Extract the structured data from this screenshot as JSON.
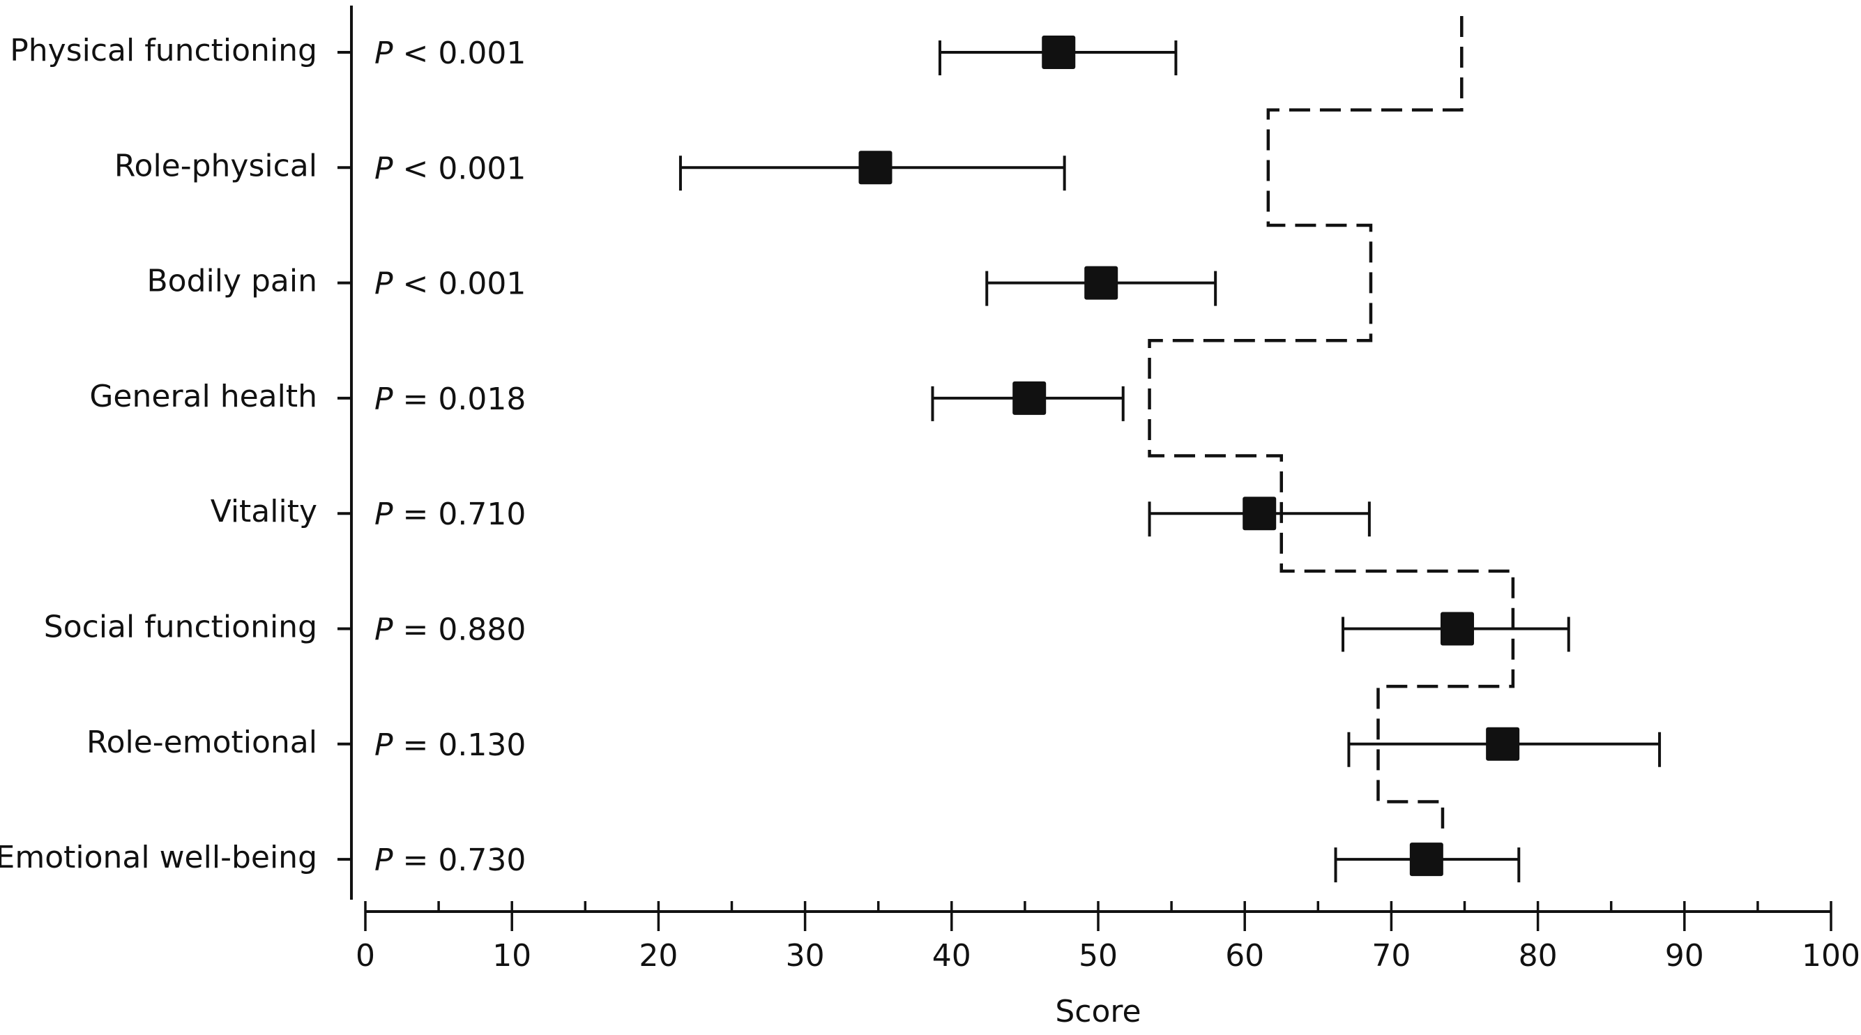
{
  "chart_data": {
    "type": "forest",
    "xlabel": "Score",
    "xlim": [
      0,
      100
    ],
    "x_ticks": [
      0,
      10,
      20,
      30,
      40,
      50,
      60,
      70,
      80,
      90,
      100
    ],
    "x_minor_step": 5,
    "rows": [
      {
        "category": "Physical functioning",
        "p_symbol": "P",
        "p_text": " < 0.001",
        "mean": 47.3,
        "ci_low": 39.2,
        "ci_high": 55.3,
        "reference": 74.8
      },
      {
        "category": "Role-physical",
        "p_symbol": "P",
        "p_text": " < 0.001",
        "mean": 34.8,
        "ci_low": 21.5,
        "ci_high": 47.7,
        "reference": 61.6
      },
      {
        "category": "Bodily pain",
        "p_symbol": "P",
        "p_text": " < 0.001",
        "mean": 50.2,
        "ci_low": 42.4,
        "ci_high": 58.0,
        "reference": 68.6
      },
      {
        "category": "General health",
        "p_symbol": "P",
        "p_text": " = 0.018",
        "mean": 45.3,
        "ci_low": 38.7,
        "ci_high": 51.7,
        "reference": 53.5
      },
      {
        "category": "Vitality",
        "p_symbol": "P",
        "p_text": " = 0.710",
        "mean": 61.0,
        "ci_low": 53.5,
        "ci_high": 68.5,
        "reference": 62.5
      },
      {
        "category": "Social functioning",
        "p_symbol": "P",
        "p_text": " = 0.880",
        "mean": 74.5,
        "ci_low": 66.7,
        "ci_high": 82.1,
        "reference": 78.3
      },
      {
        "category": "Role-emotional",
        "p_symbol": "P",
        "p_text": " = 0.130",
        "mean": 77.6,
        "ci_low": 67.1,
        "ci_high": 88.3,
        "reference": 69.1
      },
      {
        "category": "Emotional well-being",
        "p_symbol": "P",
        "p_text": " = 0.730",
        "mean": 72.4,
        "ci_low": 66.2,
        "ci_high": 78.7,
        "reference": 73.5
      }
    ],
    "colors": {
      "ink": "#111111",
      "background": "#ffffff"
    }
  }
}
